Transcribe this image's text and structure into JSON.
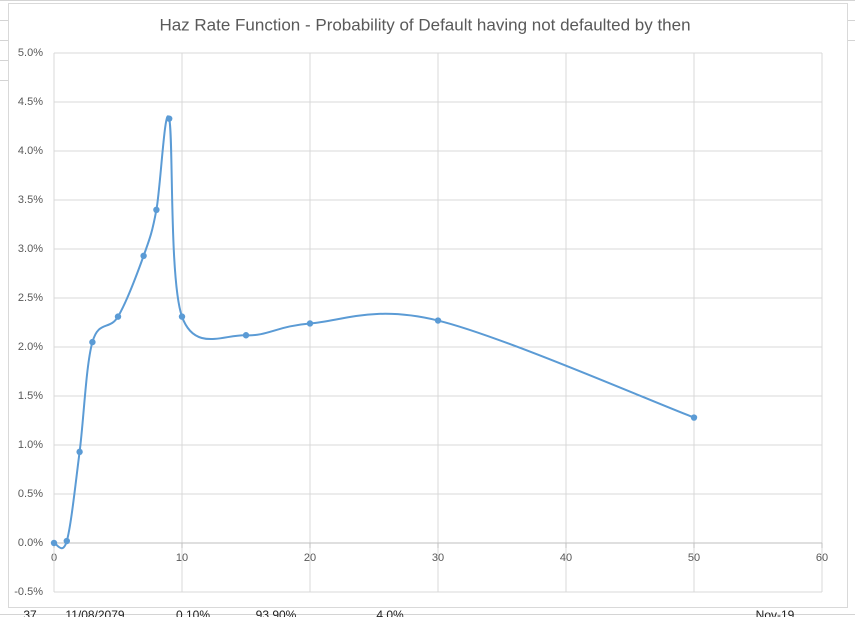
{
  "chart_data": {
    "type": "line",
    "smooth": true,
    "title": "Haz Rate Function - Probability of Default having not defaulted by then",
    "x": [
      0,
      1,
      2,
      3,
      5,
      7,
      8,
      9,
      10,
      15,
      20,
      30,
      50
    ],
    "series": [
      {
        "color": "#5b9bd5",
        "values": [
          0,
          0.02,
          0.93,
          2.05,
          2.31,
          2.93,
          3.4,
          4.33,
          2.31,
          2.12,
          2.24,
          2.27,
          1.28
        ]
      }
    ],
    "xlim": [
      0,
      60
    ],
    "xticks": [
      0,
      10,
      20,
      30,
      40,
      50,
      60
    ],
    "ylim": [
      -0.5,
      5
    ],
    "yticks": [
      {
        "value": -0.5,
        "label": "-0.5%"
      },
      {
        "value": 0,
        "label": "0.0%"
      },
      {
        "value": 0.5,
        "label": "0.5%"
      },
      {
        "value": 1,
        "label": "1.0%"
      },
      {
        "value": 1.5,
        "label": "1.5%"
      },
      {
        "value": 2,
        "label": "2.0%"
      },
      {
        "value": 2.5,
        "label": "2.5%"
      },
      {
        "value": 3,
        "label": "3.0%"
      },
      {
        "value": 3.5,
        "label": "3.5%"
      },
      {
        "value": 4,
        "label": "4.0%"
      },
      {
        "value": 4.5,
        "label": "4.5%"
      },
      {
        "value": 5,
        "label": "5.0%"
      }
    ],
    "grid": true
  },
  "background_cells": [
    "37",
    "11/08/2079",
    "0.10%",
    "93.90%",
    "4.0%",
    "Nov-19"
  ]
}
